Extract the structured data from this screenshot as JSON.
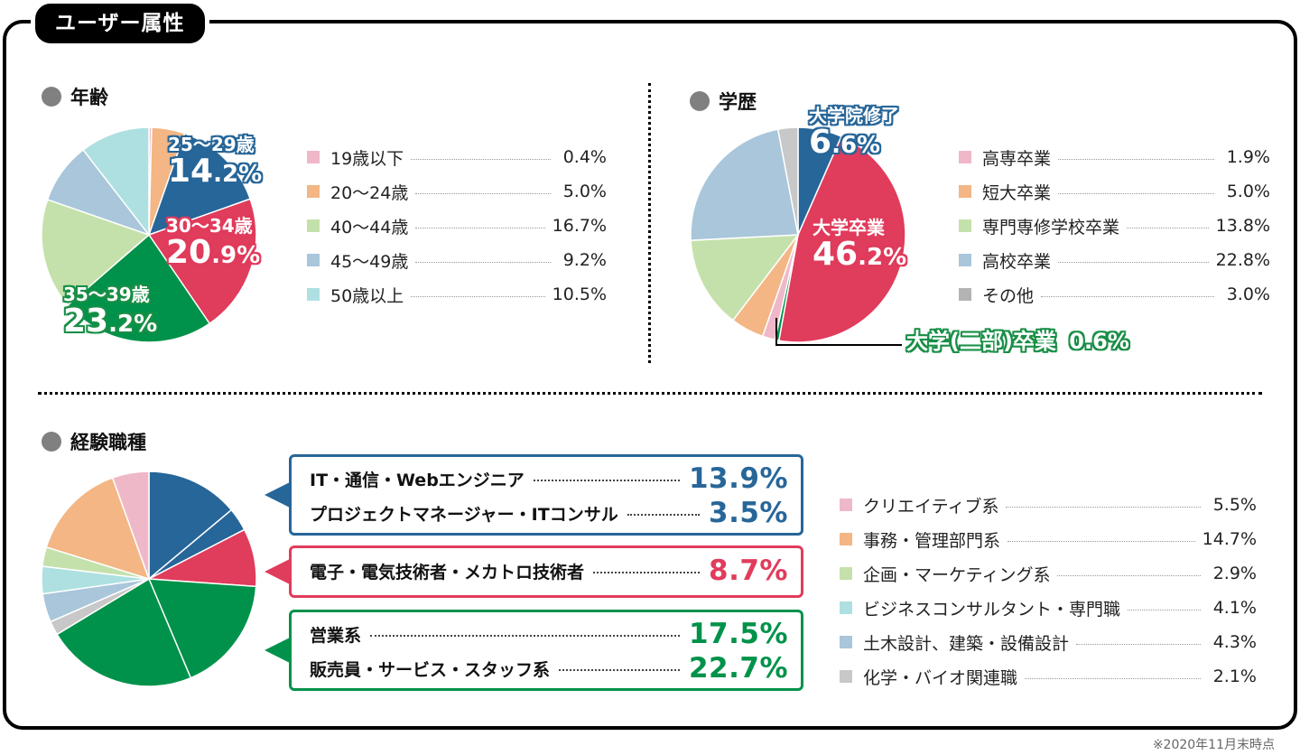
{
  "header": {
    "title": "ユーザー属性"
  },
  "colors": {
    "pink": "#efb8c8",
    "orange": "#f3b684",
    "blue": "#276699",
    "red": "#e03c5c",
    "green": "#00924a",
    "lightgreen": "#c5e1ab",
    "lightblue": "#a9c6da",
    "cyan": "#aee0e1",
    "gray": "#c8c8c8",
    "darkgray": "#b3b3b3",
    "bullet": "#808080"
  },
  "footnote": "※2020年11月末時点",
  "chart_data": [
    {
      "type": "pie",
      "title": "年齢",
      "start": "top",
      "direction": "clockwise",
      "slices": [
        {
          "label": "19歳以下",
          "value": 0.4,
          "color": "#efb8c8"
        },
        {
          "label": "20〜24歳",
          "value": 5.0,
          "color": "#f3b684"
        },
        {
          "label": "25〜29歳",
          "value": 14.2,
          "color": "#276699"
        },
        {
          "label": "30〜34歳",
          "value": 20.9,
          "color": "#e03c5c"
        },
        {
          "label": "35〜39歳",
          "value": 23.2,
          "color": "#00924a"
        },
        {
          "label": "40〜44歳",
          "value": 16.7,
          "color": "#c5e1ab"
        },
        {
          "label": "45〜49歳",
          "value": 9.2,
          "color": "#a9c6da"
        },
        {
          "label": "50歳以上",
          "value": 10.5,
          "color": "#aee0e1"
        }
      ],
      "highlights": [
        {
          "label": "25〜29歳",
          "int": "14",
          "dec": ".2%"
        },
        {
          "label": "30〜34歳",
          "int": "20",
          "dec": ".9%"
        },
        {
          "label": "35〜39歳",
          "int": "23",
          "dec": ".2%"
        }
      ],
      "legend": [
        {
          "label": "19歳以下",
          "value": "0.4%",
          "color": "#efb8c8"
        },
        {
          "label": "20〜24歳",
          "value": "5.0%",
          "color": "#f3b684"
        },
        {
          "label": "40〜44歳",
          "value": "16.7%",
          "color": "#c5e1ab"
        },
        {
          "label": "45〜49歳",
          "value": "9.2%",
          "color": "#a9c6da"
        },
        {
          "label": "50歳以上",
          "value": "10.5%",
          "color": "#aee0e1"
        }
      ]
    },
    {
      "type": "pie",
      "title": "学歴",
      "start": "top",
      "direction": "clockwise",
      "slices": [
        {
          "label": "大学院修了",
          "value": 6.6,
          "color": "#276699"
        },
        {
          "label": "大学卒業",
          "value": 46.2,
          "color": "#e03c5c"
        },
        {
          "label": "大学(二部)卒業",
          "value": 0.6,
          "color": "#00924a"
        },
        {
          "label": "高専卒業",
          "value": 1.9,
          "color": "#efb8c8"
        },
        {
          "label": "短大卒業",
          "value": 5.0,
          "color": "#f3b684"
        },
        {
          "label": "専門専修学校卒業",
          "value": 13.8,
          "color": "#c5e1ab"
        },
        {
          "label": "高校卒業",
          "value": 22.8,
          "color": "#a9c6da"
        },
        {
          "label": "その他",
          "value": 3.0,
          "color": "#c8c8c8"
        }
      ],
      "highlights": [
        {
          "label": "大学院修了",
          "int": "6",
          "dec": ".6%"
        },
        {
          "label": "大学卒業",
          "int": "46",
          "dec": ".2%"
        },
        {
          "label": "大学(二部)卒業",
          "value": "0.6%"
        }
      ],
      "legend": [
        {
          "label": "高専卒業",
          "value": "1.9%",
          "color": "#efb8c8"
        },
        {
          "label": "短大卒業",
          "value": "5.0%",
          "color": "#f3b684"
        },
        {
          "label": "専門専修学校卒業",
          "value": "13.8%",
          "color": "#c5e1ab"
        },
        {
          "label": "高校卒業",
          "value": "22.8%",
          "color": "#a9c6da"
        },
        {
          "label": "その他",
          "value": "3.0%",
          "color": "#b3b3b3"
        }
      ]
    },
    {
      "type": "pie",
      "title": "経験職種",
      "start": "top",
      "direction": "clockwise",
      "slices": [
        {
          "label": "IT・通信・Webエンジニア",
          "value": 13.9,
          "color": "#276699"
        },
        {
          "label": "プロジェクトマネージャー・ITコンサル",
          "value": 3.5,
          "color": "#276699"
        },
        {
          "label": "電子・電気技術者・メカトロ技術者",
          "value": 8.7,
          "color": "#e03c5c"
        },
        {
          "label": "営業系",
          "value": 17.5,
          "color": "#00924a"
        },
        {
          "label": "販売員・サービス・スタッフ系",
          "value": 22.7,
          "color": "#00924a"
        },
        {
          "label": "化学・バイオ関連職",
          "value": 2.1,
          "color": "#c8c8c8"
        },
        {
          "label": "土木設計、建築・設備設計",
          "value": 4.3,
          "color": "#a9c6da"
        },
        {
          "label": "ビジネスコンサルタント・専門職",
          "value": 4.1,
          "color": "#aee0e1"
        },
        {
          "label": "企画・マーケティング系",
          "value": 2.9,
          "color": "#c5e1ab"
        },
        {
          "label": "事務・管理部門系",
          "value": 14.7,
          "color": "#f3b684"
        },
        {
          "label": "クリエイティブ系",
          "value": 5.5,
          "color": "#efb8c8"
        }
      ],
      "callouts": [
        {
          "color": "#276699",
          "rows": [
            {
              "label": "IT・通信・Webエンジニア",
              "value": "13.9%"
            },
            {
              "label": "プロジェクトマネージャー・ITコンサル",
              "value": "3.5%"
            }
          ]
        },
        {
          "color": "#e03c5c",
          "rows": [
            {
              "label": "電子・電気技術者・メカトロ技術者",
              "value": "8.7%"
            }
          ]
        },
        {
          "color": "#00924a",
          "rows": [
            {
              "label": "営業系",
              "value": "17.5%"
            },
            {
              "label": "販売員・サービス・スタッフ系",
              "value": "22.7%"
            }
          ]
        }
      ],
      "legend": [
        {
          "label": "クリエイティブ系",
          "value": "5.5%",
          "color": "#efb8c8"
        },
        {
          "label": "事務・管理部門系",
          "value": "14.7%",
          "color": "#f3b684"
        },
        {
          "label": "企画・マーケティング系",
          "value": "2.9%",
          "color": "#c5e1ab"
        },
        {
          "label": "ビジネスコンサルタント・専門職",
          "value": "4.1%",
          "color": "#aee0e1"
        },
        {
          "label": "土木設計、建築・設備設計",
          "value": "4.3%",
          "color": "#a9c6da"
        },
        {
          "label": "化学・バイオ関連職",
          "value": "2.1%",
          "color": "#c8c8c8"
        }
      ]
    }
  ]
}
